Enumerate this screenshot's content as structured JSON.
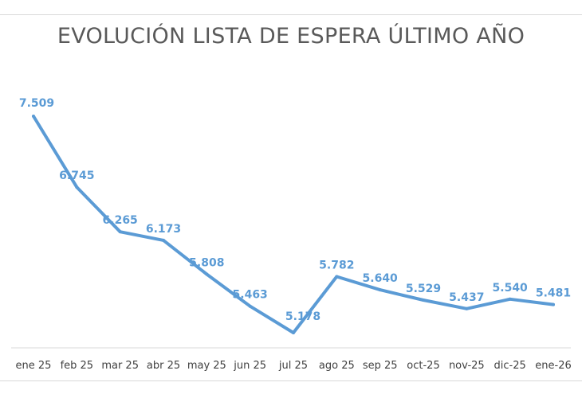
{
  "chart_data": {
    "type": "line",
    "title": "EVOLUCIÓN LISTA DE ESPERA ÚLTIMO AÑO",
    "xlabel": "",
    "ylabel": "",
    "grid": false,
    "legend": "none",
    "categories": [
      "ene 25",
      "feb 25",
      "mar 25",
      "abr 25",
      "may 25",
      "jun 25",
      "jul 25",
      "ago 25",
      "sep 25",
      "oct-25",
      "nov-25",
      "dic-25",
      "ene-26"
    ],
    "values": [
      7509,
      6745,
      6265,
      6173,
      5808,
      5463,
      5178,
      5782,
      5640,
      5529,
      5437,
      5540,
      5481
    ],
    "data_labels": [
      "7.509",
      "6.745",
      "6.265",
      "6.173",
      "5.808",
      "5.463",
      "5.178",
      "5.782",
      "5.640",
      "5.529",
      "5.437",
      "5.540",
      "5.481"
    ],
    "ylim": [
      5000,
      7600
    ],
    "line_color": "#5b9bd5"
  }
}
